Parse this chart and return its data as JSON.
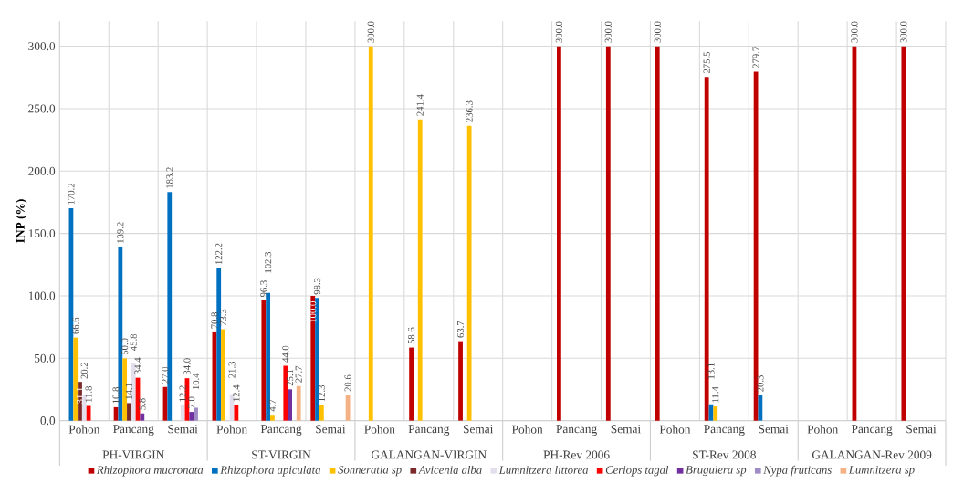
{
  "chart_data": {
    "type": "bar",
    "ylabel": "INP (%)",
    "categories": [
      "Pohon",
      "Pancang",
      "Semai",
      "Pohon",
      "Pancang",
      "Semai",
      "Pohon",
      "Pancang",
      "Semai",
      "Pohon",
      "Pancang",
      "Semai",
      "Pohon",
      "Pancang",
      "Semai",
      "Pohon",
      "Pancang",
      "Semai"
    ],
    "annotations": [
      "PH-VIRGIN",
      "ST-VIRGIN",
      "GALANGAN-VIRGIN",
      "PH-Rev 2006",
      "ST-Rev 2008",
      "GALANGAN-Rev 2009"
    ],
    "series": [
      {
        "name": "Rhizophora mucronata",
        "color": "#c00000",
        "values": [
          null,
          10.8,
          27.0,
          70.8,
          96.3,
          100.0,
          null,
          58.6,
          63.7,
          null,
          300.0,
          300.0,
          300.0,
          275.5,
          279.7,
          null,
          300.0,
          300.0
        ],
        "value_labels": [
          null,
          "10.8",
          "27.0",
          "70.8",
          "96.3",
          "100.0",
          null,
          "58.6",
          "63.7",
          null,
          "300.0",
          "300.0",
          "300.0",
          "275.5",
          "279.7",
          null,
          "300.0",
          "300.0"
        ]
      },
      {
        "name": "Rhizophora apiculata",
        "color": "#0070c0",
        "values": [
          170.2,
          139.2,
          183.2,
          122.2,
          102.3,
          98.3,
          null,
          null,
          null,
          null,
          null,
          null,
          null,
          13.1,
          20.3,
          null,
          null,
          null
        ],
        "value_labels": [
          "170.2",
          "139.2",
          "183.2",
          "122.2",
          "102.3",
          "98.3",
          null,
          null,
          null,
          null,
          null,
          null,
          null,
          "13.1",
          "20.3",
          null,
          null,
          null
        ]
      },
      {
        "name": "Sonneratia sp",
        "color": "#ffc000",
        "values": [
          66.6,
          50.0,
          null,
          73.3,
          4.7,
          12.3,
          300.0,
          241.4,
          236.3,
          null,
          null,
          null,
          null,
          11.4,
          null,
          null,
          null,
          null
        ],
        "value_labels": [
          "66.6",
          "50.0",
          null,
          "73.3",
          "4.7",
          "12.3",
          "300.0",
          "241.4",
          "236.3",
          null,
          null,
          null,
          null,
          "11.4",
          null,
          null,
          null,
          null
        ]
      },
      {
        "name": "Avicenia alba",
        "color": "#7b2a2a",
        "values": [
          31.1,
          14.1,
          null,
          null,
          null,
          null,
          null,
          null,
          null,
          null,
          null,
          null,
          null,
          null,
          null,
          null,
          null,
          null
        ],
        "value_labels": [
          "31.1",
          "14.1",
          null,
          null,
          null,
          null,
          null,
          null,
          null,
          null,
          null,
          null,
          null,
          null,
          null,
          null,
          null,
          null
        ]
      },
      {
        "name": "Lumnitzera littorea",
        "color": "#e4dfec",
        "values": [
          20.2,
          45.8,
          12.2,
          21.3,
          null,
          null,
          null,
          null,
          null,
          null,
          null,
          null,
          null,
          null,
          null,
          null,
          null,
          null
        ],
        "value_labels": [
          "20.2",
          "45.8",
          "12.2",
          "21.3",
          null,
          null,
          null,
          null,
          null,
          null,
          null,
          null,
          null,
          null,
          null,
          null,
          null,
          null
        ]
      },
      {
        "name": "Ceriops tagal",
        "color": "#ff0000",
        "values": [
          11.8,
          34.4,
          34.0,
          12.4,
          44.0,
          null,
          null,
          null,
          null,
          null,
          null,
          null,
          null,
          null,
          null,
          null,
          null,
          null
        ],
        "value_labels": [
          "11.8",
          "34.4",
          "34.0",
          "12.4",
          "44.0",
          null,
          null,
          null,
          null,
          null,
          null,
          null,
          null,
          null,
          null,
          null,
          null,
          null
        ]
      },
      {
        "name": "Bruguiera sp",
        "color": "#7030a0",
        "values": [
          null,
          5.8,
          7.0,
          null,
          25.1,
          null,
          null,
          null,
          null,
          null,
          null,
          null,
          null,
          null,
          null,
          null,
          null,
          null
        ],
        "value_labels": [
          null,
          "5.8",
          "7.0",
          null,
          "25.1",
          null,
          null,
          null,
          null,
          null,
          null,
          null,
          null,
          null,
          null,
          null,
          null,
          null
        ]
      },
      {
        "name": "Nypa fruticans",
        "color": "#a08cc4",
        "values": [
          null,
          null,
          10.4,
          null,
          null,
          null,
          null,
          null,
          null,
          null,
          null,
          null,
          null,
          null,
          null,
          null,
          null,
          null
        ],
        "value_labels": [
          null,
          null,
          "10.4",
          null,
          null,
          null,
          null,
          null,
          null,
          null,
          null,
          null,
          null,
          null,
          null,
          null,
          null,
          null
        ]
      },
      {
        "name": "Lumnitzera sp",
        "color": "#f4b183",
        "values": [
          null,
          null,
          null,
          null,
          27.7,
          20.6,
          null,
          null,
          null,
          null,
          null,
          null,
          null,
          null,
          null,
          null,
          null,
          null
        ],
        "value_labels": [
          null,
          null,
          null,
          null,
          "27.7",
          "20.6",
          null,
          null,
          null,
          null,
          null,
          null,
          null,
          null,
          null,
          null,
          null,
          null
        ]
      }
    ],
    "ylim": [
      0,
      320
    ],
    "yticks": [
      {
        "value": 0,
        "label": "0.0"
      },
      {
        "value": 50,
        "label": "50.0"
      },
      {
        "value": 100,
        "label": "100.0"
      },
      {
        "value": 150,
        "label": "150.0"
      },
      {
        "value": 200,
        "label": "200.0"
      },
      {
        "value": 250,
        "label": "250.0"
      },
      {
        "value": 300,
        "label": "300.0"
      }
    ],
    "grid": true,
    "legend": "bottom",
    "data_labels": true
  }
}
